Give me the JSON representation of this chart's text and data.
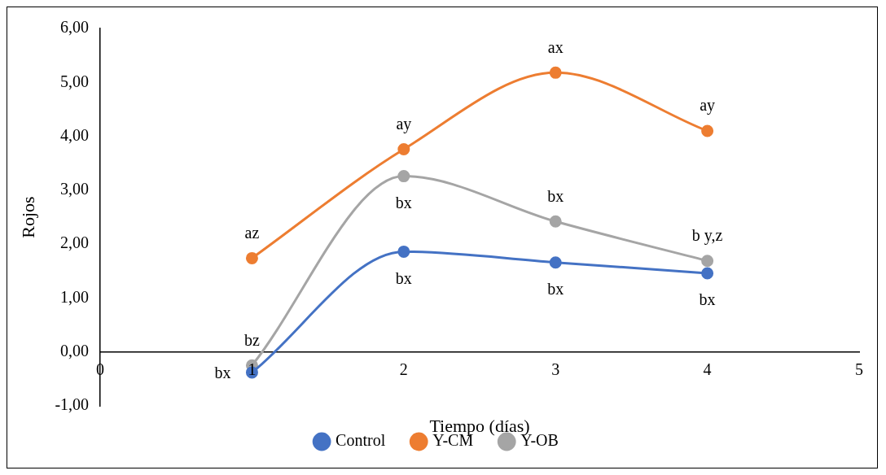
{
  "chart_data": {
    "type": "line",
    "xlabel": "Tiempo (días)",
    "ylabel": "Rojos",
    "x": [
      1,
      2,
      3,
      4
    ],
    "series": [
      {
        "name": "Control",
        "color": "#4472c4",
        "values": [
          -0.38,
          1.86,
          1.66,
          1.46
        ]
      },
      {
        "name": "Y-CM",
        "color": "#ed7d31",
        "values": [
          1.74,
          3.76,
          5.18,
          4.1
        ]
      },
      {
        "name": "Y-OB",
        "color": "#a5a5a5",
        "values": [
          -0.25,
          3.26,
          2.42,
          1.69
        ]
      }
    ],
    "xlim": [
      0,
      5
    ],
    "xticks": [
      0,
      1,
      2,
      3,
      4,
      5
    ],
    "ylim": [
      -1,
      6
    ],
    "yticks": [
      {
        "value": -1,
        "label": "-1,00"
      },
      {
        "value": 0,
        "label": "0,00"
      },
      {
        "value": 1,
        "label": "1,00"
      },
      {
        "value": 2,
        "label": "2,00"
      },
      {
        "value": 3,
        "label": "3,00"
      },
      {
        "value": 4,
        "label": "4,00"
      },
      {
        "value": 5,
        "label": "5,00"
      },
      {
        "value": 6,
        "label": "6,00"
      }
    ],
    "grid": false,
    "legend": "bottom",
    "marker": "circle",
    "line_style": "solid",
    "annotations": [
      {
        "text": "az",
        "x": 1,
        "y": 1.74
      },
      {
        "text": "bz",
        "x": 1,
        "y": -0.25
      },
      {
        "text": "bx",
        "x": 1,
        "y": -0.38
      },
      {
        "text": "ay",
        "x": 2,
        "y": 3.76
      },
      {
        "text": "bx",
        "x": 2,
        "y": 3.26
      },
      {
        "text": "bx",
        "x": 2,
        "y": 1.86
      },
      {
        "text": "ax",
        "x": 3,
        "y": 5.18
      },
      {
        "text": "bx",
        "x": 3,
        "y": 2.42
      },
      {
        "text": "bx",
        "x": 3,
        "y": 1.66
      },
      {
        "text": "ay",
        "x": 4,
        "y": 4.1
      },
      {
        "text": "b y,z",
        "x": 4,
        "y": 1.69
      },
      {
        "text": "bx",
        "x": 4,
        "y": 1.46
      }
    ]
  }
}
